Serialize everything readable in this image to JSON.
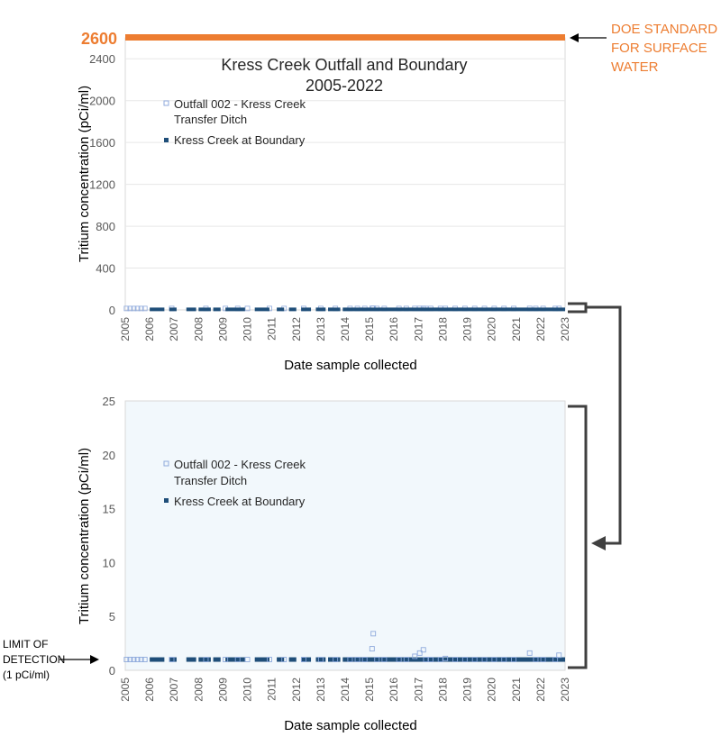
{
  "chart_data": [
    {
      "type": "scatter",
      "title": "Kress Creek Outfall and Boundary",
      "subtitle": "2005-2022",
      "xlabel": "Date sample collected",
      "ylabel": "Tritium concentration (pCi/ml)",
      "xlim": [
        2005,
        2023
      ],
      "ylim": [
        0,
        2600
      ],
      "y_ticks": [
        "0",
        "400",
        "800",
        "1200",
        "1600",
        "2000",
        "2400"
      ],
      "x_ticks": [
        "2005",
        "2006",
        "2007",
        "2008",
        "2009",
        "2010",
        "2011",
        "2012",
        "2013",
        "2014",
        "2015",
        "2016",
        "2017",
        "2018",
        "2019",
        "2020",
        "2021",
        "2022",
        "2023"
      ],
      "standard_line": {
        "value": 2600,
        "label": "2600",
        "annotation": "DOE STANDARD FOR SURFACE WATER",
        "color": "#ed7d31"
      },
      "legend": [
        "Outfall 002 - Kress Creek Transfer Ditch",
        "Kress Creek at Boundary"
      ],
      "legend_position": "top-left",
      "grid": true
    },
    {
      "type": "scatter",
      "xlabel": "Date sample collected",
      "ylabel": "Tritium concentration (pCi/ml)",
      "xlim": [
        2005,
        2023
      ],
      "ylim": [
        0,
        25
      ],
      "y_ticks": [
        "0",
        "5",
        "10",
        "15",
        "20",
        "25"
      ],
      "x_ticks": [
        "2005",
        "2006",
        "2007",
        "2008",
        "2009",
        "2010",
        "2011",
        "2012",
        "2013",
        "2014",
        "2015",
        "2016",
        "2017",
        "2018",
        "2019",
        "2020",
        "2021",
        "2022",
        "2023"
      ],
      "limit_of_detection": {
        "value": 1,
        "annotation": "LIMIT OF DETECTION (1 pCi/ml)"
      },
      "legend": [
        "Outfall 002 - Kress Creek Transfer Ditch",
        "Kress Creek at Boundary"
      ],
      "legend_position": "top-left",
      "grid": false,
      "series": [
        {
          "name": "Outfall 002 - Kress Creek Transfer Ditch",
          "marker": "open-square",
          "color": "#8faadc",
          "points": [
            [
              2005.05,
              1
            ],
            [
              2005.2,
              1
            ],
            [
              2005.35,
              1
            ],
            [
              2005.5,
              1
            ],
            [
              2005.65,
              1
            ],
            [
              2005.8,
              1
            ],
            [
              2006.9,
              1
            ],
            [
              2008.3,
              1
            ],
            [
              2009.1,
              1
            ],
            [
              2009.6,
              1
            ],
            [
              2010.0,
              1
            ],
            [
              2010.9,
              1
            ],
            [
              2011.5,
              1
            ],
            [
              2012.3,
              1
            ],
            [
              2013.0,
              1
            ],
            [
              2013.6,
              1
            ],
            [
              2014.2,
              1
            ],
            [
              2014.5,
              1
            ],
            [
              2014.8,
              1
            ],
            [
              2015.1,
              2
            ],
            [
              2015.15,
              3.4
            ],
            [
              2015.3,
              1
            ],
            [
              2015.6,
              1
            ],
            [
              2016.2,
              1
            ],
            [
              2016.5,
              1
            ],
            [
              2016.85,
              1.3
            ],
            [
              2017.05,
              1.6
            ],
            [
              2017.2,
              1.9
            ],
            [
              2017.3,
              1
            ],
            [
              2017.5,
              1
            ],
            [
              2017.9,
              1
            ],
            [
              2018.1,
              1.1
            ],
            [
              2018.5,
              1
            ],
            [
              2018.9,
              1
            ],
            [
              2019.3,
              1
            ],
            [
              2019.7,
              1
            ],
            [
              2020.1,
              1
            ],
            [
              2020.5,
              1
            ],
            [
              2020.9,
              1
            ],
            [
              2021.55,
              1.6
            ],
            [
              2021.8,
              1
            ],
            [
              2022.1,
              1
            ],
            [
              2022.6,
              1
            ],
            [
              2022.75,
              1.4
            ]
          ]
        },
        {
          "name": "Kress Creek at Boundary",
          "marker": "filled-square",
          "color": "#1f4e79",
          "segments": [
            [
              2006.0,
              2006.6
            ],
            [
              2006.8,
              2007.1
            ],
            [
              2007.5,
              2007.9
            ],
            [
              2008.0,
              2008.5
            ],
            [
              2008.6,
              2008.9
            ],
            [
              2009.1,
              2009.9
            ],
            [
              2010.3,
              2010.9
            ],
            [
              2011.2,
              2011.5
            ],
            [
              2011.7,
              2012.0
            ],
            [
              2012.2,
              2012.6
            ],
            [
              2012.8,
              2013.2
            ],
            [
              2013.3,
              2013.8
            ],
            [
              2013.9,
              2023.0
            ]
          ],
          "value": 1
        }
      ]
    }
  ],
  "annotations": {
    "doe_line1": "DOE STANDARD",
    "doe_line2": "FOR SURFACE",
    "doe_line3": "WATER",
    "lod_line1": "LIMIT OF",
    "lod_line2": "DETECTION",
    "lod_line3": "(1 pCi/ml)"
  },
  "colors": {
    "standard": "#ed7d31",
    "outfall": "#8faadc",
    "boundary": "#1f4e79",
    "plot_bg_bottom": "#f2f8fc",
    "axis": "#bfbfbf",
    "arrow": "#404040"
  }
}
